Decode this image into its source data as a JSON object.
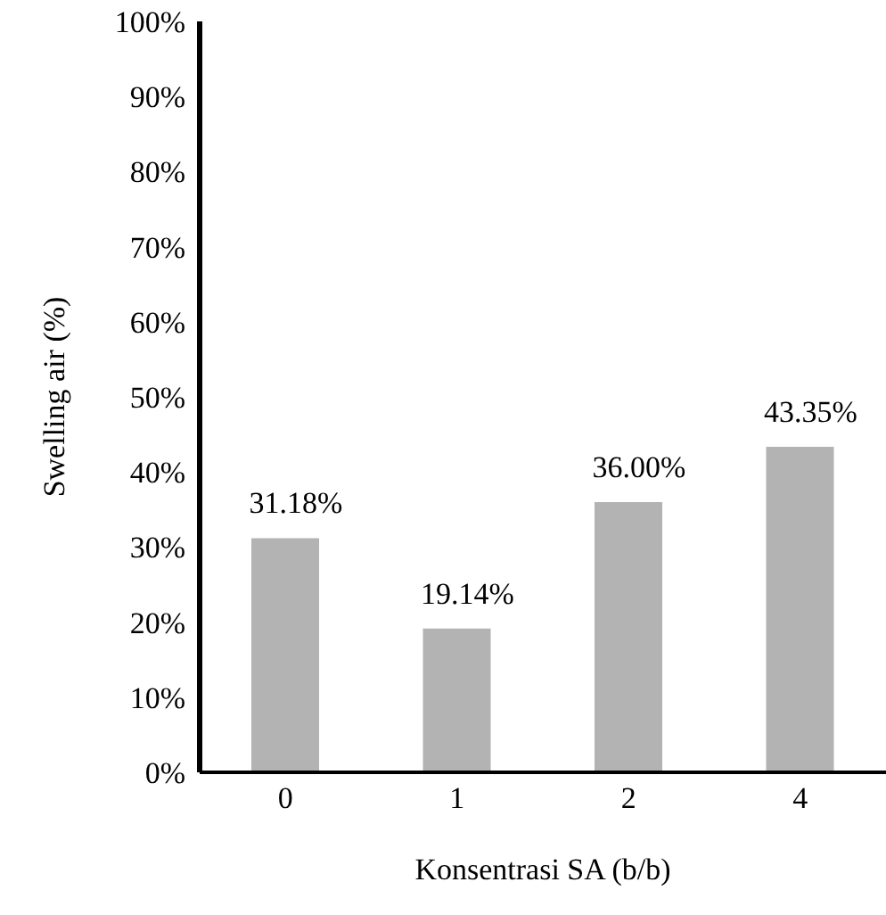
{
  "chart_data": {
    "type": "bar",
    "xlabel": "Konsentrasi SA (b/b)",
    "ylabel": "Swelling air (%)",
    "categories": [
      "0",
      "1",
      "2",
      "4"
    ],
    "values": [
      31.18,
      19.14,
      36.0,
      43.35
    ],
    "value_labels": [
      "31.18%",
      "19.14%",
      "36.00%",
      "43.35%"
    ],
    "color": "#b3b3b3",
    "ylim": [
      0,
      100
    ],
    "yticks": [
      {
        "value": 0,
        "label": "0%"
      },
      {
        "value": 10,
        "label": "10%"
      },
      {
        "value": 20,
        "label": "20%"
      },
      {
        "value": 30,
        "label": "30%"
      },
      {
        "value": 40,
        "label": "40%"
      },
      {
        "value": 50,
        "label": "50%"
      },
      {
        "value": 60,
        "label": "60%"
      },
      {
        "value": 70,
        "label": "70%"
      },
      {
        "value": 80,
        "label": "80%"
      },
      {
        "value": 90,
        "label": "90%"
      },
      {
        "value": 100,
        "label": "100%"
      }
    ],
    "grid": false,
    "legend": false
  }
}
